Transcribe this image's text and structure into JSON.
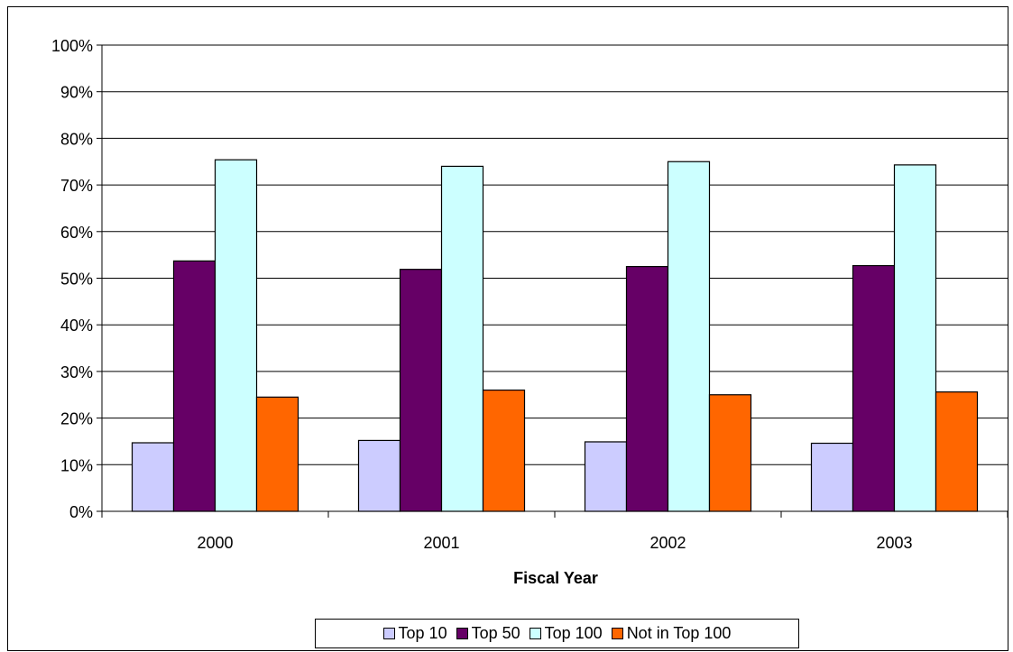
{
  "chart_data": {
    "type": "bar",
    "xlabel": "Fiscal Year",
    "ylabel": "",
    "ylim": [
      0,
      100
    ],
    "ytick_labels": [
      "0%",
      "10%",
      "20%",
      "30%",
      "40%",
      "50%",
      "60%",
      "70%",
      "80%",
      "90%",
      "100%"
    ],
    "categories": [
      "2000",
      "2001",
      "2002",
      "2003"
    ],
    "series": [
      {
        "name": "Top 10",
        "values": [
          14.7,
          15.2,
          14.9,
          14.6
        ],
        "color": "#ccccff"
      },
      {
        "name": "Top 50",
        "values": [
          53.7,
          51.9,
          52.5,
          52.7
        ],
        "color": "#660066"
      },
      {
        "name": "Top 100",
        "values": [
          75.4,
          74.0,
          75.0,
          74.3
        ],
        "color": "#ccffff"
      },
      {
        "name": "Not in Top 100",
        "values": [
          24.5,
          26.0,
          25.0,
          25.6
        ],
        "color": "#ff6600"
      }
    ],
    "grid": true,
    "legend_position": "bottom-center"
  }
}
